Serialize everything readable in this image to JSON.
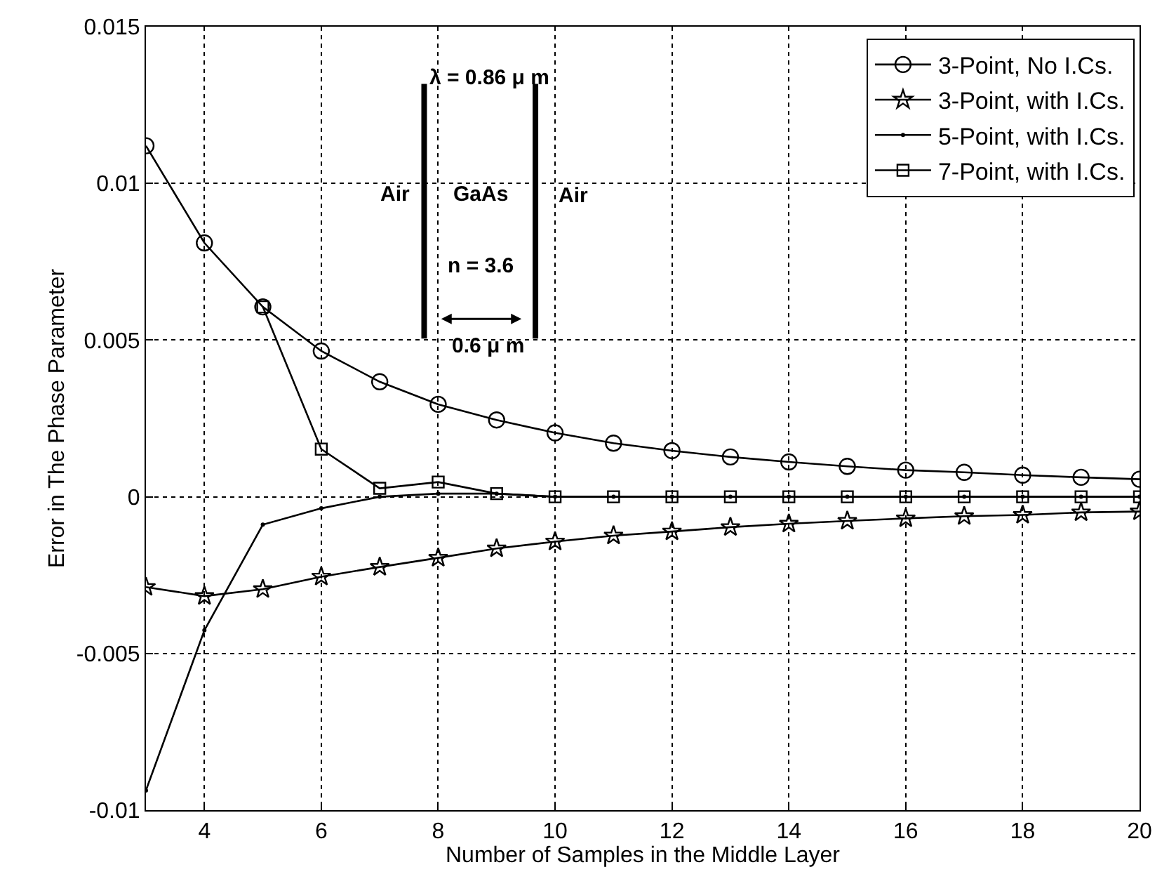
{
  "chart_data": {
    "type": "line",
    "xlabel": "Number of Samples in the Middle Layer",
    "ylabel": "Error in The Phase Parameter",
    "xlim": [
      3,
      20
    ],
    "xticks": [
      4,
      6,
      8,
      10,
      12,
      14,
      16,
      18,
      20
    ],
    "ylim": [
      -0.01,
      0.015
    ],
    "yticks": [
      -0.01,
      -0.005,
      0,
      0.005,
      0.01,
      0.015
    ],
    "grid": true,
    "legend": "top right",
    "line_style": "solid",
    "series": [
      {
        "name": "3-Point, No I.Cs.",
        "color": "#000000",
        "marker": "circle",
        "x": [
          3,
          4,
          5,
          6,
          7,
          8,
          9,
          10,
          11,
          12,
          13,
          14,
          15,
          16,
          17,
          18,
          19,
          20
        ],
        "values": [
          0.0112,
          0.0081,
          0.00606,
          0.00465,
          0.00367,
          0.00295,
          0.00245,
          0.00204,
          0.00171,
          0.00147,
          0.00127,
          0.00111,
          0.00097,
          0.00085,
          0.00078,
          0.00069,
          0.00062,
          0.00056
        ]
      },
      {
        "name": "3-Point, with I.Cs.",
        "color": "#000000",
        "marker": "star",
        "x": [
          3,
          4,
          5,
          6,
          7,
          8,
          9,
          10,
          11,
          12,
          13,
          14,
          15,
          16,
          17,
          18,
          19,
          20
        ],
        "values": [
          -0.00288,
          -0.00317,
          -0.00295,
          -0.00255,
          -0.00224,
          -0.00195,
          -0.00165,
          -0.00143,
          -0.00124,
          -0.00111,
          -0.00097,
          -0.00086,
          -0.00077,
          -0.00069,
          -0.00062,
          -0.00058,
          -0.0005,
          -0.00047
        ]
      },
      {
        "name": "5-Point, with I.Cs.",
        "color": "#000000",
        "marker": "none",
        "x": [
          3,
          4,
          5,
          6,
          7,
          8,
          9,
          10,
          11,
          12,
          13,
          14,
          15,
          16,
          17,
          18,
          19,
          20
        ],
        "values": [
          -0.00937,
          -0.00426,
          -0.00089,
          -0.00037,
          0.0,
          0.0001,
          0.0001,
          0.0,
          0.0,
          0.0,
          0.0,
          0.0,
          0.0,
          0.0,
          0.0,
          0.0,
          0.0,
          0.0
        ]
      },
      {
        "name": "7-Point, with I.Cs.",
        "color": "#000000",
        "marker": "square",
        "x": [
          5,
          6,
          7,
          8,
          9,
          10,
          11,
          12,
          13,
          14,
          15,
          16,
          17,
          18,
          19,
          20
        ],
        "values": [
          0.00606,
          0.00152,
          0.00027,
          0.00047,
          0.0001,
          0.0,
          0.0,
          0.0,
          0.0,
          0.0,
          0.0,
          0.0,
          0.0,
          0.0,
          0.0,
          0.0
        ]
      }
    ],
    "annotations": [
      "λ = 0.86 μ m",
      "Air",
      "GaAs",
      "Air",
      "n = 3.6",
      "0.6 μ m"
    ]
  }
}
